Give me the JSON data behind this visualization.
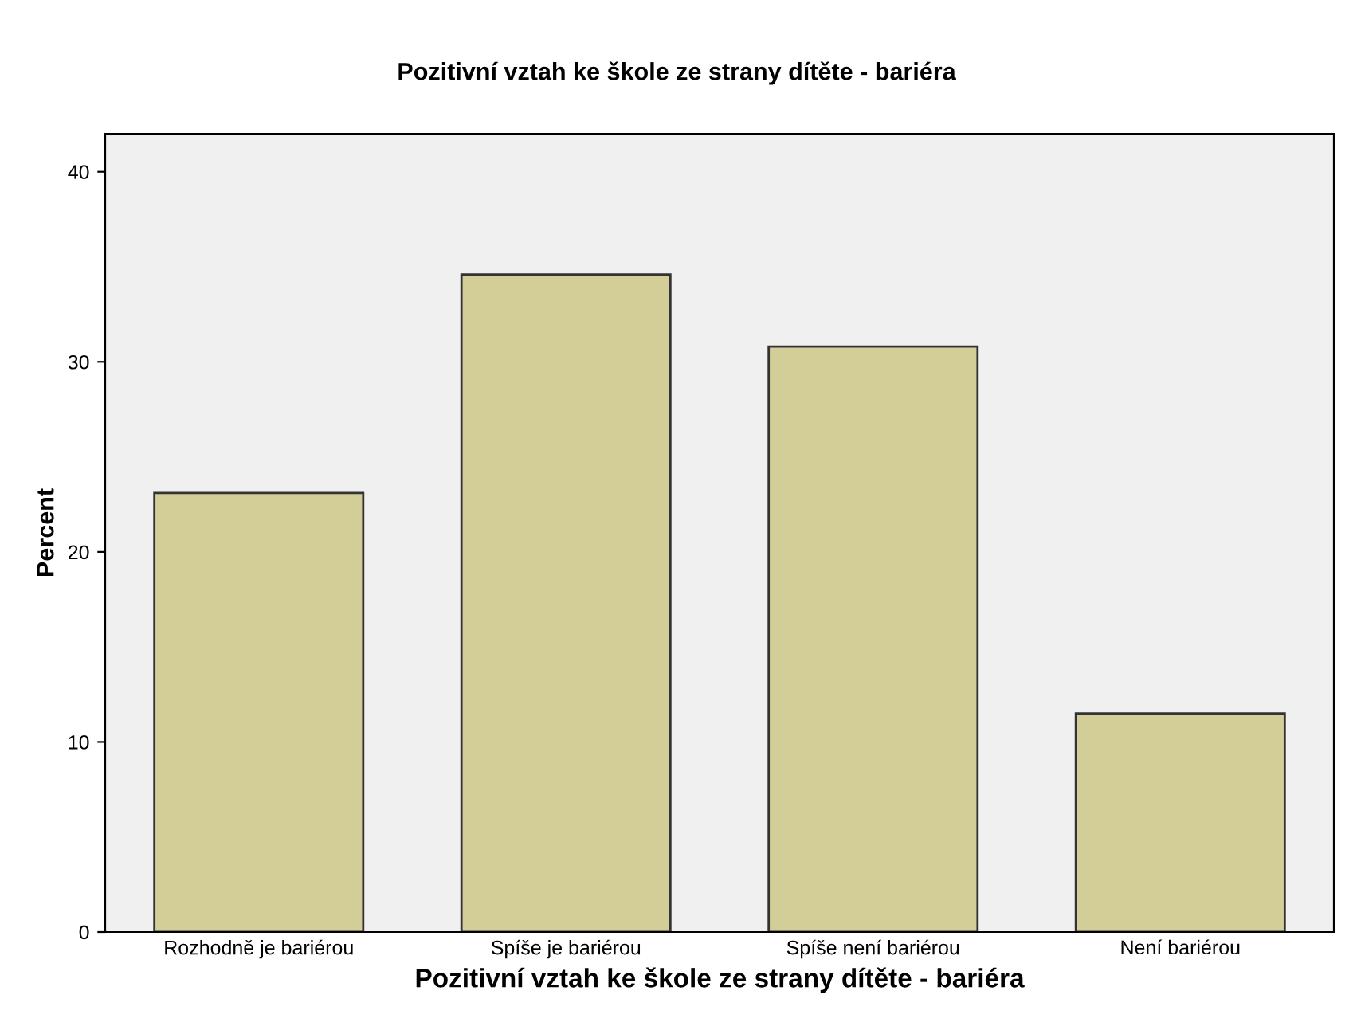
{
  "chart_data": {
    "type": "bar",
    "title": "Pozitivní vztah ke škole ze strany dítěte - bariéra",
    "xlabel": "Pozitivní vztah ke škole ze strany dítěte - bariéra",
    "ylabel": "Percent",
    "categories": [
      "Rozhodně je bariérou",
      "Spíše je bariérou",
      "Spíše není bariérou",
      "Není bariérou"
    ],
    "values": [
      23.1,
      34.6,
      30.8,
      11.5
    ],
    "color": "#d3ce98",
    "ylim": [
      0,
      42
    ],
    "yticks": [
      0,
      10,
      20,
      30,
      40
    ],
    "grid": false
  }
}
